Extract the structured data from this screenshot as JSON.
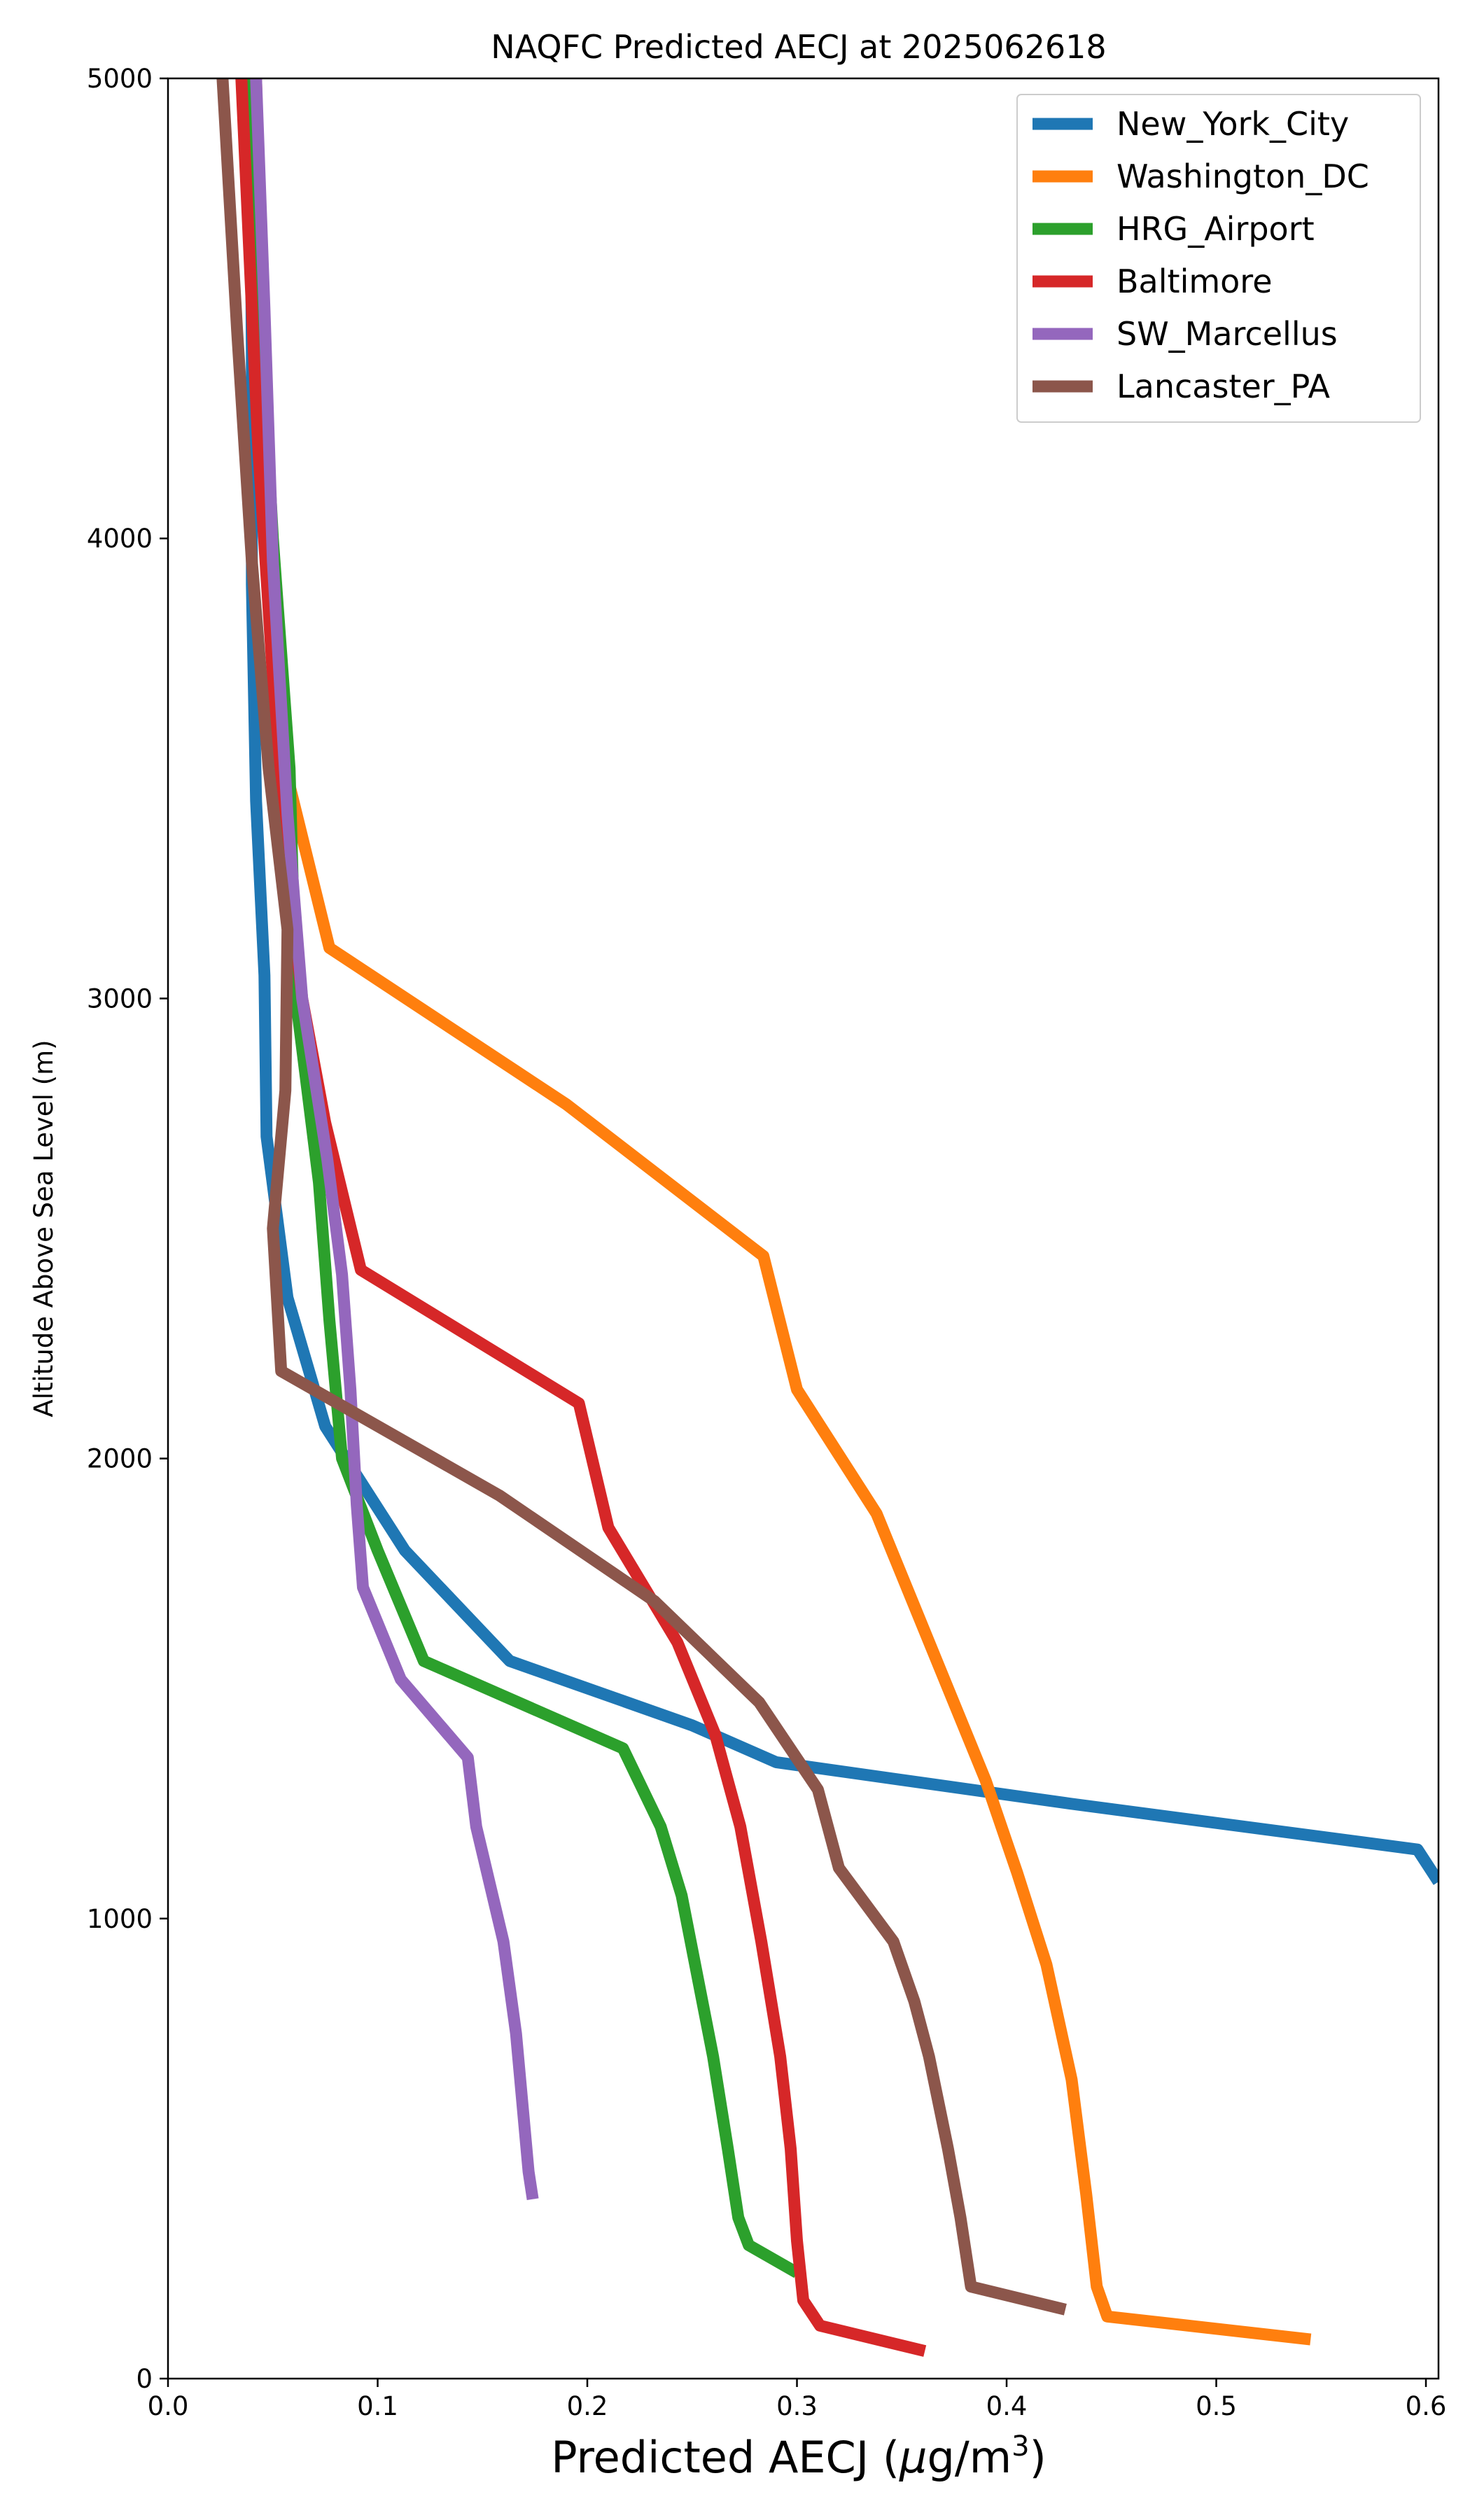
{
  "chart_data": {
    "type": "line",
    "title": "NAQFC Predicted AECJ at 2025062618",
    "xlabel": "Predicted AECJ (μg/m³)",
    "xlabel_base": "Predicted AECJ (",
    "xlabel_mu": "μ",
    "xlabel_unit": "g/m",
    "xlabel_sup": "3",
    "xlabel_end": ")",
    "ylabel": "Altitude Above Sea Level (m)",
    "xlim": [
      0.0,
      0.606
    ],
    "ylim": [
      0,
      5000
    ],
    "xticks": [
      0.0,
      0.1,
      0.2,
      0.3,
      0.4,
      0.5,
      0.6
    ],
    "xtick_labels": [
      "0.0",
      "0.1",
      "0.2",
      "0.3",
      "0.4",
      "0.5",
      "0.6"
    ],
    "yticks": [
      0,
      1000,
      2000,
      3000,
      4000,
      5000
    ],
    "ytick_labels": [
      "0",
      "1000",
      "2000",
      "3000",
      "4000",
      "5000"
    ],
    "grid": false,
    "legend_position": "top-right",
    "series": [
      {
        "name": "New_York_City",
        "color": "#1f77b4",
        "points": [
          [
            0.606,
            1080
          ],
          [
            0.596,
            1150
          ],
          [
            0.43,
            1250
          ],
          [
            0.29,
            1340
          ],
          [
            0.25,
            1420
          ],
          [
            0.163,
            1560
          ],
          [
            0.113,
            1800
          ],
          [
            0.075,
            2070
          ],
          [
            0.057,
            2350
          ],
          [
            0.047,
            2700
          ],
          [
            0.046,
            3050
          ],
          [
            0.042,
            3430
          ],
          [
            0.04,
            3900
          ],
          [
            0.04,
            4400
          ],
          [
            0.039,
            5000
          ]
        ]
      },
      {
        "name": "Washington_DC",
        "color": "#ff7f0e",
        "points": [
          [
            0.545,
            85
          ],
          [
            0.448,
            135
          ],
          [
            0.443,
            200
          ],
          [
            0.438,
            400
          ],
          [
            0.431,
            650
          ],
          [
            0.419,
            900
          ],
          [
            0.405,
            1100
          ],
          [
            0.39,
            1300
          ],
          [
            0.338,
            1880
          ],
          [
            0.3,
            2150
          ],
          [
            0.284,
            2440
          ],
          [
            0.19,
            2770
          ],
          [
            0.077,
            3110
          ],
          [
            0.056,
            3500
          ],
          [
            0.05,
            3800
          ],
          [
            0.045,
            4500
          ],
          [
            0.042,
            5000
          ]
        ]
      },
      {
        "name": "HRG_Airport",
        "color": "#2ca02c",
        "points": [
          [
            0.3,
            230
          ],
          [
            0.277,
            290
          ],
          [
            0.272,
            350
          ],
          [
            0.267,
            500
          ],
          [
            0.26,
            700
          ],
          [
            0.245,
            1050
          ],
          [
            0.235,
            1200
          ],
          [
            0.217,
            1370
          ],
          [
            0.122,
            1560
          ],
          [
            0.1,
            1800
          ],
          [
            0.083,
            2000
          ],
          [
            0.077,
            2300
          ],
          [
            0.072,
            2600
          ],
          [
            0.061,
            3000
          ],
          [
            0.058,
            3500
          ],
          [
            0.05,
            4000
          ],
          [
            0.038,
            5000
          ]
        ]
      },
      {
        "name": "Baltimore",
        "color": "#d62728",
        "points": [
          [
            0.361,
            60
          ],
          [
            0.311,
            115
          ],
          [
            0.303,
            170
          ],
          [
            0.3,
            300
          ],
          [
            0.297,
            500
          ],
          [
            0.292,
            700
          ],
          [
            0.283,
            950
          ],
          [
            0.273,
            1200
          ],
          [
            0.261,
            1400
          ],
          [
            0.243,
            1600
          ],
          [
            0.21,
            1850
          ],
          [
            0.196,
            2120
          ],
          [
            0.092,
            2410
          ],
          [
            0.075,
            2730
          ],
          [
            0.064,
            3000
          ],
          [
            0.057,
            3300
          ],
          [
            0.05,
            3700
          ],
          [
            0.043,
            4200
          ],
          [
            0.037,
            4800
          ],
          [
            0.035,
            5000
          ]
        ]
      },
      {
        "name": "SW_Marcellus",
        "color": "#9467bd",
        "points": [
          [
            0.174,
            390
          ],
          [
            0.172,
            450
          ],
          [
            0.166,
            750
          ],
          [
            0.16,
            950
          ],
          [
            0.147,
            1200
          ],
          [
            0.143,
            1350
          ],
          [
            0.111,
            1520
          ],
          [
            0.093,
            1720
          ],
          [
            0.09,
            1900
          ],
          [
            0.087,
            2150
          ],
          [
            0.083,
            2400
          ],
          [
            0.076,
            2650
          ],
          [
            0.064,
            3000
          ],
          [
            0.057,
            3400
          ],
          [
            0.05,
            3950
          ],
          [
            0.046,
            4500
          ],
          [
            0.042,
            5000
          ]
        ]
      },
      {
        "name": "Lancaster_PA",
        "color": "#8c564b",
        "points": [
          [
            0.428,
            150
          ],
          [
            0.383,
            200
          ],
          [
            0.378,
            350
          ],
          [
            0.372,
            500
          ],
          [
            0.363,
            700
          ],
          [
            0.356,
            820
          ],
          [
            0.346,
            950
          ],
          [
            0.32,
            1110
          ],
          [
            0.31,
            1280
          ],
          [
            0.282,
            1470
          ],
          [
            0.232,
            1690
          ],
          [
            0.158,
            1920
          ],
          [
            0.054,
            2190
          ],
          [
            0.05,
            2500
          ],
          [
            0.056,
            2800
          ],
          [
            0.057,
            3150
          ],
          [
            0.048,
            3500
          ],
          [
            0.04,
            3950
          ],
          [
            0.033,
            4450
          ],
          [
            0.026,
            5000
          ]
        ]
      }
    ]
  }
}
